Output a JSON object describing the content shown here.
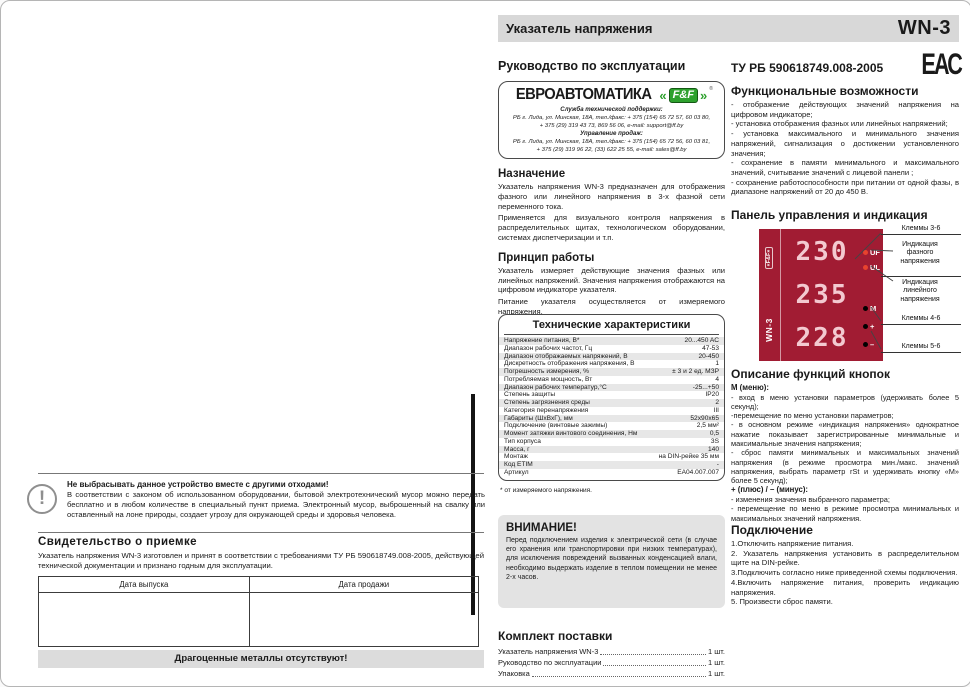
{
  "colors": {
    "device_red": "#a11c33",
    "brand_green": "#2ea12e",
    "led_red": "#e8432e",
    "header_gray": "#d8d8d8"
  },
  "header": {
    "title": "Указатель напряжения",
    "model": "WN-3"
  },
  "left_page": {
    "warning": {
      "title": "Не выбрасывать данное устройство вместе с другими отходами!",
      "body": "В соответствии с законом об использованном оборудовании, бытовой электротехнический мусор можно передать бесплатно и в любом количестве в специальный пункт приема. Электронный мусор, выброшенный на свалку или оставленный на лоне природы, создает угрозу для окружающей среды и здоровья человека.",
      "icon": "!"
    },
    "acceptance": {
      "heading": "Свидетельство о приемке",
      "body": "Указатель напряжения WN-3 изготовлен и принят в соответствии с требованиями ТУ РБ 590618749.008-2005, действующей технической документации и признано годным для эксплуатации."
    },
    "date_table": {
      "col1": "Дата выпуска",
      "col2": "Дата продажи"
    },
    "no_metals": "Драгоценные металлы отсутствуют!"
  },
  "middle": {
    "manual_heading": "Руководство по эксплуатации",
    "brand": {
      "name": "ЕВРОАВТОМАТИКА",
      "logo_left": "«",
      "logo_text": "F&F",
      "logo_right": "»",
      "logo_reg": "®",
      "support_label": "Служба технической поддержки:",
      "support_line1": "РБ г. Лида, ул. Минская, 18А, тел./факс: + 375 (154) 65 72 57, 60 03 80,",
      "support_line2": "+ 375 (29) 319 43 73, 869 56 06, e-mail: support@ff.by",
      "sales_label": "Управление продаж:",
      "sales_line1": "РБ г. Лида, ул. Минская, 18А, тел./факс: + 375 (154) 65 72 56, 60 03 81,",
      "sales_line2": "+ 375 (29) 319 96 22, (33) 622 25 55, e-mail: sales@ff.by"
    },
    "purpose": {
      "heading": "Назначение",
      "p1": "Указатель напряжения WN-3 предназначен для отображения фазного или линейного напряжения в 3-х фазной сети переменного тока.",
      "p2": "Применяется для визуального контроля напряжения в распределительных щитах, технологическом оборудовании, системах диспетчеризации и т.п."
    },
    "principle": {
      "heading": "Принцип работы",
      "p1": "Указатель измеряет действующие значения фазных или линейных напряжений. Значения напряжения отображаются на цифровом индикаторе указателя.",
      "p2": "Питание указателя осуществляется от измеряемого напряжения."
    },
    "specs": {
      "heading": "Технические характеристики",
      "rows": [
        {
          "n": "Напряжение питания, В*",
          "v": "20...450 AC"
        },
        {
          "n": "Диапазон рабочих частот, Гц",
          "v": "47-53"
        },
        {
          "n": "Диапазон отображаемых напряжений, В",
          "v": "20-450"
        },
        {
          "n": "Дискретность отображения напряжения, В",
          "v": "1"
        },
        {
          "n": "Погрешность измерения, %",
          "v": "± 3 и 2 ед. МЗР"
        },
        {
          "n": "Потребляемая мощность, Вт",
          "v": "4"
        },
        {
          "n": "Диапазон рабочих температур,°С",
          "v": "-25...+50"
        },
        {
          "n": "Степень защиты",
          "v": "IP20"
        },
        {
          "n": "Степень загрязнения среды",
          "v": "2"
        },
        {
          "n": "Категория перенапряжения",
          "v": "III"
        },
        {
          "n": "Габариты (ШхВхГ), мм",
          "v": "52х90х65"
        },
        {
          "n": "Подключение (винтовые зажимы)",
          "v": "2,5 мм²"
        },
        {
          "n": "Момент затяжки винтового соединения, Нм",
          "v": "0,5"
        },
        {
          "n": "Тип корпуса",
          "v": "3S"
        },
        {
          "n": "Масса, г",
          "v": "140"
        },
        {
          "n": "Монтаж",
          "v": "на DIN-рейке 35 мм"
        },
        {
          "n": "Код ETIM",
          "v": "-"
        },
        {
          "n": "Артикул",
          "v": "EA04.007.007"
        }
      ],
      "footnote": "* от измеряемого напряжения."
    },
    "attention": {
      "heading": "ВНИМАНИЕ!",
      "body": "Перед подключением изделия к электрической сети (в случае его хранения или транспортировки при низких температурах), для исключения повреждений вызванных конденсацией влаги, необходимо выдержать изделие в теплом помещении не менее 2-х часов."
    },
    "kit": {
      "heading": "Комплект поставки",
      "items": [
        {
          "name": "Указатель напряжения WN-3",
          "qty": "1 шт."
        },
        {
          "name": "Руководство по эксплуатации",
          "qty": "1 шт."
        },
        {
          "name": "Упаковка",
          "qty": "1 шт."
        }
      ]
    }
  },
  "right": {
    "tu": "ТУ РБ 590618749.008-2005",
    "eac": "ЕАС",
    "features": {
      "heading": "Функциональные возможности",
      "items": [
        "- отображение действующих значений напряжения на цифровом индикаторе;",
        "- установка отображения фазных или линейных напряжений;",
        "- установка максимального и минимального значения напряжений, сигнализация о достижении установленного значения;",
        "- сохранение в памяти минимального и максимального значений, считывание значений с лицевой панели ;",
        "- сохранение работоспособности при питании от одной фазы, в диапазоне напряжений от 20 до 450 В."
      ]
    },
    "panel": {
      "heading": "Панель управления и индикация",
      "display_values": [
        "230",
        "235",
        "228"
      ],
      "logo_side": "«F&F»",
      "model_side": "WN-3",
      "leds": [
        {
          "label": "UF",
          "color": "red"
        },
        {
          "label": "UL",
          "color": "red"
        },
        {
          "label": "M",
          "color": "black"
        },
        {
          "label": "+",
          "color": "black"
        },
        {
          "label": "–",
          "color": "black"
        }
      ],
      "callout1": "Клеммы 3-6",
      "callout2": "Индикация фазного напряжения",
      "callout3": "Индикация линейного напряжения",
      "callout4": "Клеммы 4-6",
      "callout5": "Клеммы 5-6"
    },
    "buttons": {
      "heading": "Описание функций кнопок",
      "menu_label": "М (меню):",
      "menu_items": [
        "- вход в меню установки параметров (удерживать более 5 секунд);",
        "-перемещение по меню установки параметров;",
        "- в основном режиме «индикация напряжения» однократное нажатие показывает зарегистрированные минимальные и максимальные значения напряжения;",
        "- сброс памяти минимальных и максимальных значений напряжения (в режиме просмотра мин./макс. значений напряжения, выбрать параметр rSt и удерживать кнопку «М» более 5 секунд);"
      ],
      "plusminus_label": "+ (плюс) / – (минус):",
      "plusminus_items": [
        "- изменения значения выбранного параметра;",
        "- перемещение по меню в режиме просмотра минимальных и максимальных значений напряжения."
      ]
    },
    "connection": {
      "heading": "Подключение",
      "steps": [
        "1.Отключить напряжение питания.",
        "2. Указатель напряжения установить в распределительном щите на DIN-рейке.",
        "3.Подключить согласно ниже приведенной схемы подключения.",
        "4.Включить напряжение питания, проверить индикацию напряжения.",
        "5. Произвести сброс памяти."
      ]
    }
  }
}
